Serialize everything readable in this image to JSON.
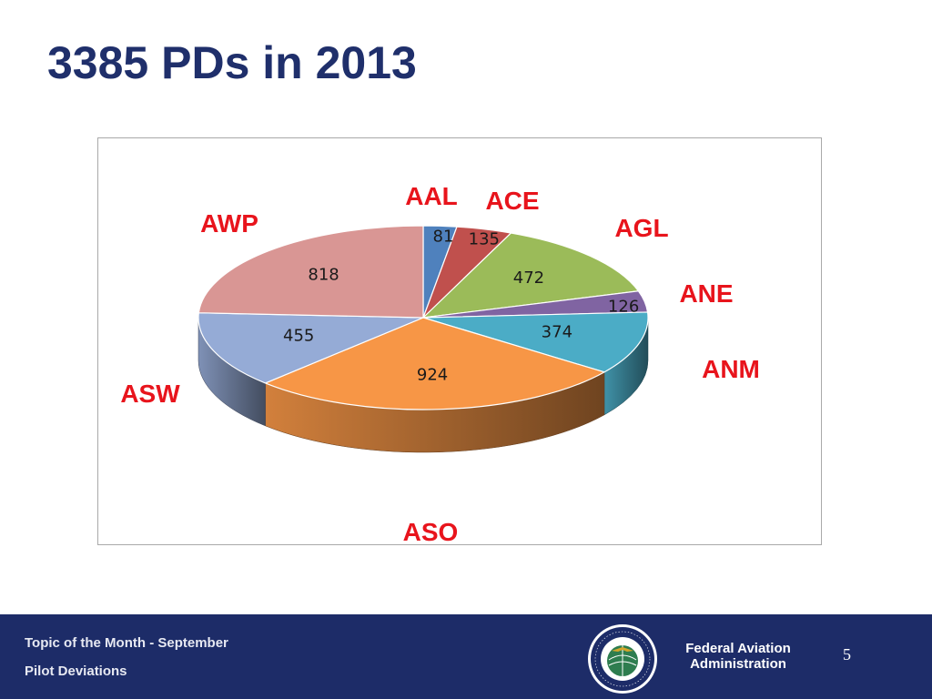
{
  "slide": {
    "title": "3385 PDs in 2013"
  },
  "chart_data": {
    "type": "pie",
    "title": "",
    "categories": [
      "AAL",
      "ACE",
      "AGL",
      "ANE",
      "ANM",
      "ASO",
      "ASW",
      "AWP"
    ],
    "values": [
      81,
      135,
      472,
      126,
      374,
      924,
      455,
      818
    ],
    "colors": [
      "#4f81bd",
      "#c0504d",
      "#9bbb59",
      "#8064a2",
      "#4bacc6",
      "#f79646",
      "#95abd6",
      "#d99694"
    ],
    "label_color": "#e8141c",
    "three_d": true,
    "legend": "none"
  },
  "footer": {
    "topic": "Topic of the Month - September",
    "subtopic": "Pilot Deviations",
    "agency_line1": "Federal Aviation",
    "agency_line2": "Administration",
    "page_number": "5",
    "seal_icon": "faa-seal-icon",
    "background": "#1d2c68"
  }
}
